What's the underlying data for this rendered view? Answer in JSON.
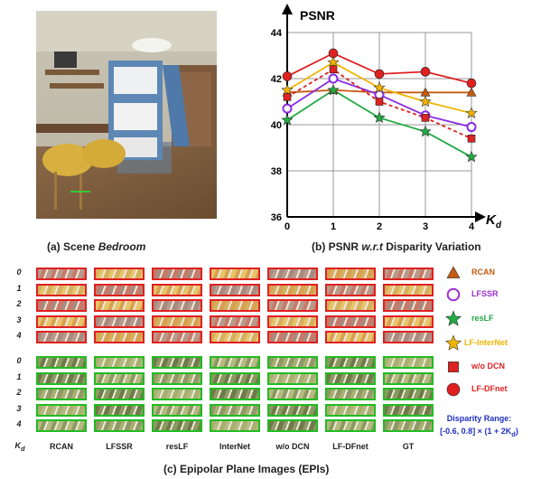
{
  "captions": {
    "a_prefix": "(a) Scene ",
    "a_scene": "Bedroom",
    "b_prefix": "(b) PSNR ",
    "b_wrt": "w.r.t",
    "b_suffix": " Disparity Variation",
    "c": "(c) Epipolar Plane Images (EPIs)"
  },
  "chart_data": {
    "type": "line",
    "ylabel": "PSNR",
    "xlabel": "K_d",
    "x": [
      0,
      1,
      2,
      3,
      4
    ],
    "xticks": [
      "0",
      "1",
      "2",
      "3",
      "4"
    ],
    "yticks": [
      "36",
      "38",
      "40",
      "42",
      "44"
    ],
    "ylim": [
      36,
      44
    ],
    "grid": true,
    "series": [
      {
        "name": "RCAN",
        "color": "#c55a11",
        "marker": "triangle",
        "dashed": false,
        "values": [
          41.4,
          41.5,
          41.4,
          41.4,
          41.4
        ]
      },
      {
        "name": "LFSSR",
        "color": "#8a2be2",
        "marker": "circle-open",
        "dashed": false,
        "values": [
          40.7,
          42.0,
          41.3,
          40.4,
          39.9
        ]
      },
      {
        "name": "resLF",
        "color": "#22aa44",
        "marker": "star",
        "dashed": false,
        "values": [
          40.2,
          41.5,
          40.3,
          39.7,
          38.6
        ]
      },
      {
        "name": "LF-InterNet",
        "color": "#f0b400",
        "marker": "star",
        "dashed": false,
        "values": [
          41.5,
          42.7,
          41.6,
          41.0,
          40.5
        ]
      },
      {
        "name": "w/o DCN",
        "color": "#dd2222",
        "marker": "square",
        "dashed": true,
        "values": [
          41.2,
          42.4,
          41.0,
          40.3,
          39.4
        ]
      },
      {
        "name": "LF-DFnet",
        "color": "#e02020",
        "marker": "circle",
        "dashed": false,
        "values": [
          42.1,
          43.1,
          42.2,
          42.3,
          41.8
        ]
      }
    ]
  },
  "epi": {
    "row_labels": [
      "0",
      "1",
      "2",
      "3",
      "4"
    ],
    "kd_label": "K",
    "kd_sub": "d",
    "columns": [
      "RCAN",
      "LFSSR",
      "resLF",
      "InterNet",
      "w/o DCN",
      "LF-DFnet",
      "GT"
    ]
  },
  "legend": [
    {
      "label": "RCAN",
      "color": "#c55a11",
      "marker": "triangle"
    },
    {
      "label": "LFSSR",
      "color": "#9b30d0",
      "marker": "circle-open"
    },
    {
      "label": "resLF",
      "color": "#22aa44",
      "marker": "star"
    },
    {
      "label": "LF-InterNet",
      "color": "#f0b400",
      "marker": "star"
    },
    {
      "label": "w/o DCN",
      "color": "#dd2222",
      "marker": "square"
    },
    {
      "label": "LF-DFnet",
      "color": "#e02020",
      "marker": "circle"
    }
  ],
  "range": {
    "title": "Disparity Range:",
    "formula": "[-0.6, 0.8] × (1 + 2K",
    "sub": "d",
    "close": ")"
  }
}
